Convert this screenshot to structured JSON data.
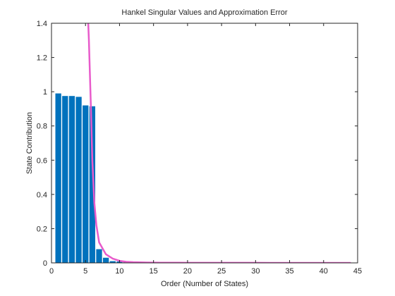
{
  "chart_data": {
    "type": "bar",
    "title": "Hankel Singular Values and Approximation Error",
    "xlabel": "Order (Number of States)",
    "ylabel": "State Contribution",
    "xlim": [
      0,
      45
    ],
    "ylim": [
      0,
      1.4
    ],
    "x_ticks": [
      "0",
      "5",
      "10",
      "15",
      "20",
      "25",
      "30",
      "35",
      "40",
      "45"
    ],
    "y_ticks": [
      "0",
      "0.2",
      "0.4",
      "0.6",
      "0.8",
      "1",
      "1.2",
      "1.4"
    ],
    "grid": false,
    "colors": {
      "bars": "#0072BD",
      "error_line": "#E85BCB",
      "axes": "#262626"
    },
    "series": [
      {
        "type": "bar",
        "x": [
          1,
          2,
          3,
          4,
          5,
          6,
          7,
          8,
          9,
          10,
          11,
          12,
          13,
          14,
          15,
          16,
          17,
          18,
          19,
          20,
          21,
          22,
          23,
          24,
          25,
          26,
          27,
          28,
          29,
          30,
          31,
          32,
          33,
          34,
          35,
          36,
          37,
          38,
          39,
          40,
          41,
          42,
          43,
          44
        ],
        "values": [
          0.99,
          0.975,
          0.975,
          0.97,
          0.92,
          0.915,
          0.08,
          0.03,
          0.01,
          0.008,
          0.004,
          0.003,
          0.002,
          0.0015,
          0.001,
          0.001,
          0.0008,
          0.0007,
          0.0006,
          0.0005,
          0.0005,
          0.0004,
          0.0004,
          0.0003,
          0.0003,
          0.0003,
          0.0002,
          0.0002,
          0.0002,
          0.0002,
          0.0001,
          0.0001,
          0.0001,
          0.0001,
          0.0001,
          0.0001,
          0.0001,
          0.0001,
          0.0001,
          0.0001,
          0.0001,
          0.0001,
          0.0001,
          0.0001
        ]
      },
      {
        "type": "line",
        "x": [
          5.2,
          5.5,
          5.8,
          6.0,
          6.3,
          6.6,
          7,
          8,
          9,
          10,
          11,
          12,
          13,
          14,
          15,
          16,
          20,
          25,
          30,
          35,
          40,
          44
        ],
        "values": [
          1.6,
          1.3,
          0.9,
          0.6,
          0.35,
          0.22,
          0.12,
          0.05,
          0.025,
          0.012,
          0.006,
          0.004,
          0.003,
          0.002,
          0.0015,
          0.001,
          0.0007,
          0.0004,
          0.0003,
          0.0002,
          0.0001,
          0.0001
        ]
      }
    ]
  }
}
